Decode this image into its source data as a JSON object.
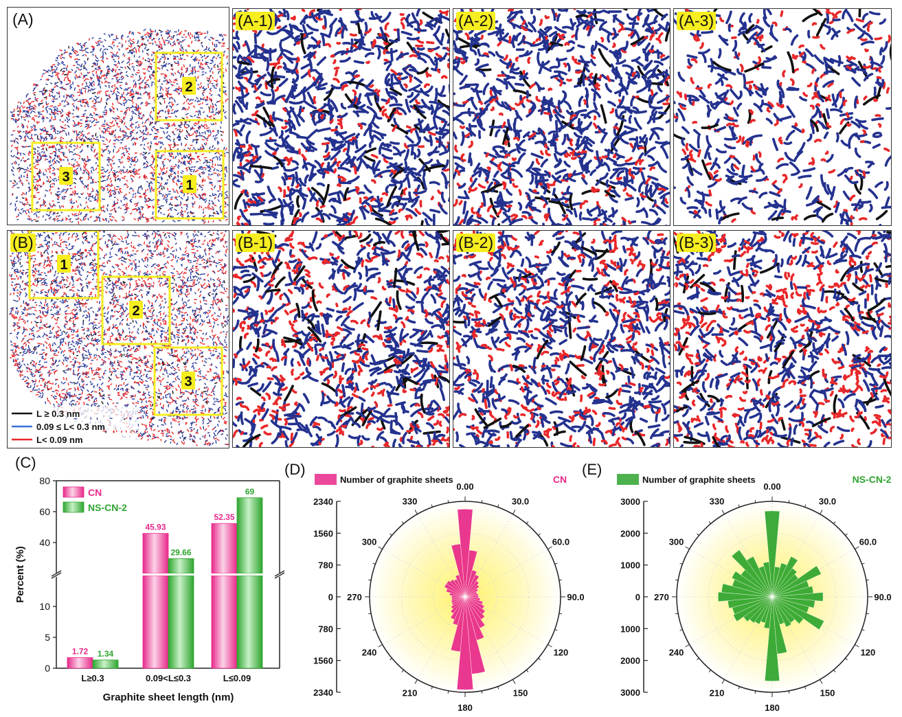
{
  "figure": {
    "panels_top": [
      {
        "id": "A",
        "label": "(A)",
        "boxes": [
          "2",
          "3",
          "1"
        ]
      },
      {
        "id": "B",
        "label": "(B)",
        "boxes": [
          "1",
          "2",
          "3"
        ]
      }
    ],
    "zooms": [
      "(A-1)",
      "(A-2)",
      "(A-3)",
      "(B-1)",
      "(B-2)",
      "(B-3)"
    ],
    "legend": [
      {
        "text": "L ≥ 0.3 nm",
        "color": "#111111"
      },
      {
        "text": "0.09 ≤ L< 0.3 nm",
        "color": "#3a6fd8"
      },
      {
        "text": "L< 0.09 nm",
        "color": "#e8282a"
      }
    ],
    "colors": {
      "black": "#111111",
      "blue": "#24328f",
      "red": "#e8282a",
      "box": "#f6ee20"
    }
  },
  "chart_data": [
    {
      "panel_label": "(C)",
      "type": "bar",
      "categories": [
        "L≥0.3",
        "0.09<L≤0.3",
        "L≤0.09"
      ],
      "series": [
        {
          "name": "CN",
          "values": [
            1.72,
            45.93,
            52.35
          ],
          "labels": [
            "1.72",
            "45.93",
            "52.35"
          ],
          "color": "#e8288a"
        },
        {
          "name": "NS-CN-2",
          "values": [
            1.34,
            29.66,
            69
          ],
          "labels": [
            "1.34",
            "29.66",
            "69"
          ],
          "color": "#2ea52e"
        }
      ],
      "xlabel": "Graphite sheet length (nm)",
      "ylabel": "Percent (%)",
      "axis_break": true,
      "yticks_lower": [
        "0",
        "5",
        "10"
      ],
      "yticks_upper": [
        "40",
        "60",
        "80"
      ],
      "ylim_lower": [
        0,
        15
      ],
      "ylim_upper": [
        20,
        80
      ]
    },
    {
      "panel_label": "(D)",
      "type": "polar-bar",
      "title": "CN",
      "legend": "Number of graphite sheets",
      "color": "#e8288a",
      "rmax": 2340,
      "r_ticks_top": [
        "2340",
        "1560",
        "780",
        "0"
      ],
      "r_ticks_bottom": [
        "780",
        "1560",
        "2340"
      ],
      "angle_labels": [
        "0.00",
        "30.0",
        "60.0",
        "90.0",
        "120",
        "150",
        "180",
        "210",
        "240",
        "270",
        "300",
        "330"
      ],
      "bin_width_deg": 10,
      "angles": [
        0,
        10,
        20,
        30,
        40,
        50,
        60,
        70,
        80,
        90,
        100,
        110,
        120,
        130,
        140,
        150,
        160,
        170,
        180,
        190,
        200,
        210,
        220,
        230,
        240,
        250,
        260,
        270,
        280,
        290,
        300,
        310,
        320,
        330,
        340,
        350
      ],
      "values": [
        2150,
        1150,
        680,
        600,
        480,
        420,
        350,
        300,
        320,
        330,
        370,
        450,
        520,
        600,
        680,
        850,
        1100,
        1900,
        2280,
        1350,
        720,
        620,
        500,
        420,
        360,
        350,
        330,
        330,
        380,
        480,
        560,
        560,
        520,
        480,
        560,
        1300
      ]
    },
    {
      "panel_label": "(E)",
      "type": "polar-bar",
      "title": "NS-CN-2",
      "legend": "Number of graphite sheets",
      "color": "#2ea52e",
      "rmax": 3000,
      "r_ticks_top": [
        "3000",
        "2000",
        "1000",
        "0"
      ],
      "r_ticks_bottom": [
        "1000",
        "2000",
        "3000"
      ],
      "angle_labels": [
        "0.00",
        "30.0",
        "60.0",
        "90.0",
        "120",
        "150",
        "180",
        "210",
        "240",
        "270",
        "300",
        "330"
      ],
      "bin_width_deg": 10,
      "angles": [
        0,
        10,
        20,
        30,
        40,
        50,
        60,
        70,
        80,
        90,
        100,
        110,
        120,
        130,
        140,
        150,
        160,
        170,
        180,
        190,
        200,
        210,
        220,
        230,
        240,
        250,
        260,
        270,
        280,
        290,
        300,
        310,
        320,
        330,
        340,
        350
      ],
      "values": [
        2700,
        950,
        1100,
        1400,
        1100,
        1000,
        1700,
        1200,
        1300,
        1600,
        1350,
        1200,
        1800,
        1200,
        1000,
        1050,
        900,
        1800,
        2650,
        1000,
        850,
        950,
        1000,
        1100,
        1350,
        1300,
        1400,
        1700,
        1600,
        1300,
        1400,
        1200,
        1800,
        1400,
        1000,
        1100
      ]
    }
  ]
}
